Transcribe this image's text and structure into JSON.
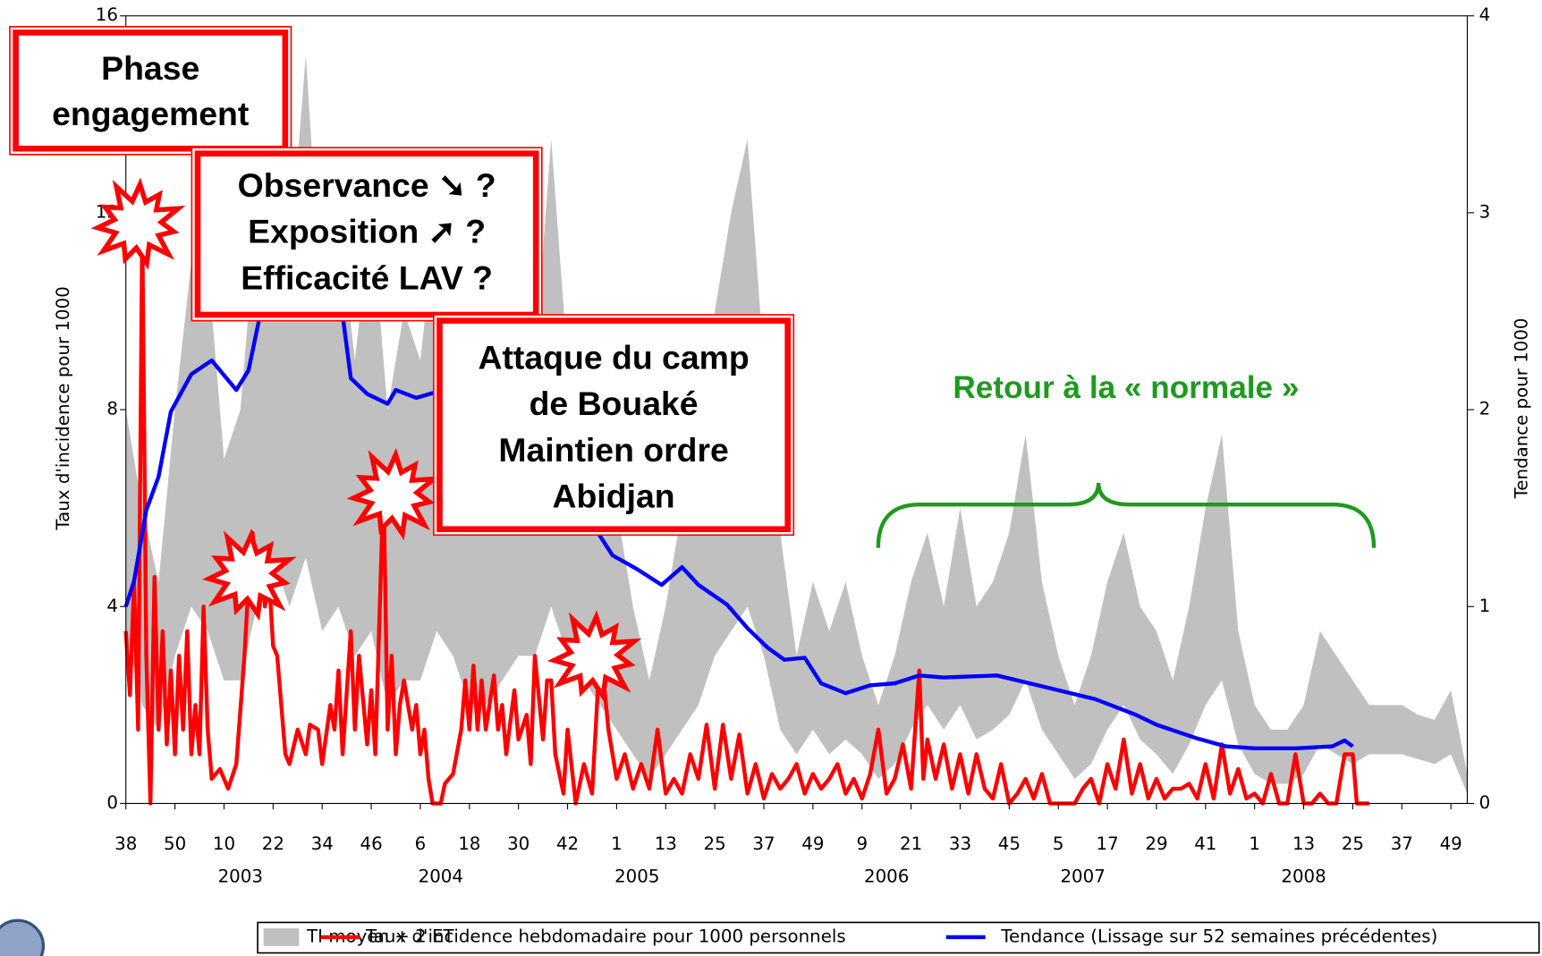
{
  "chart_data": {
    "type": "line",
    "y_label": "Taux d'incidence pour 1000",
    "y2_label": "Tendance pour 1000",
    "xlim": [
      0,
      328
    ],
    "xticks": [
      {
        "value": 0,
        "label": "38"
      },
      {
        "value": 12,
        "label": "50"
      },
      {
        "value": 24,
        "label": "10"
      },
      {
        "value": 36,
        "label": "22"
      },
      {
        "value": 48,
        "label": "34"
      },
      {
        "value": 60,
        "label": "46"
      },
      {
        "value": 72,
        "label": "6"
      },
      {
        "value": 84,
        "label": "18"
      },
      {
        "value": 96,
        "label": "30"
      },
      {
        "value": 108,
        "label": "42"
      },
      {
        "value": 120,
        "label": "1"
      },
      {
        "value": 132,
        "label": "13"
      },
      {
        "value": 144,
        "label": "25"
      },
      {
        "value": 156,
        "label": "37"
      },
      {
        "value": 168,
        "label": "49"
      },
      {
        "value": 180,
        "label": "9"
      },
      {
        "value": 192,
        "label": "21"
      },
      {
        "value": 204,
        "label": "33"
      },
      {
        "value": 216,
        "label": "45"
      },
      {
        "value": 228,
        "label": "5"
      },
      {
        "value": 240,
        "label": "17"
      },
      {
        "value": 252,
        "label": "29"
      },
      {
        "value": 264,
        "label": "41"
      },
      {
        "value": 276,
        "label": "1"
      },
      {
        "value": 288,
        "label": "13"
      },
      {
        "value": 300,
        "label": "25"
      },
      {
        "value": 312,
        "label": "37"
      },
      {
        "value": 324,
        "label": "49"
      }
    ],
    "x_groups": [
      {
        "value": 28,
        "label": "2003"
      },
      {
        "value": 77,
        "label": "2004"
      },
      {
        "value": 125,
        "label": "2005"
      },
      {
        "value": 186,
        "label": "2006"
      },
      {
        "value": 234,
        "label": "2007"
      },
      {
        "value": 288,
        "label": "2008"
      }
    ],
    "ylim": [
      0,
      16
    ],
    "yticks": [
      0,
      4,
      8,
      12,
      16
    ],
    "y2lim": [
      0,
      4
    ],
    "y2ticks": [
      0,
      1,
      2,
      3,
      4
    ],
    "series": [
      {
        "name": "TI moyen + 2 ET",
        "color": "#c0c0c0",
        "style": "band",
        "x": [
          0,
          4,
          8,
          12,
          16,
          20,
          24,
          28,
          32,
          36,
          40,
          44,
          48,
          52,
          56,
          60,
          64,
          68,
          72,
          76,
          80,
          84,
          88,
          92,
          96,
          100,
          104,
          108,
          112,
          116,
          120,
          124,
          128,
          132,
          136,
          140,
          144,
          148,
          152,
          156,
          160,
          164,
          168,
          172,
          176,
          180,
          184,
          188,
          192,
          196,
          200,
          204,
          208,
          212,
          216,
          220,
          224,
          228,
          232,
          236,
          240,
          244,
          248,
          252,
          256,
          260,
          264,
          268,
          272,
          276,
          280,
          284,
          288,
          292,
          296,
          300,
          304,
          308,
          312,
          316,
          320,
          324,
          328
        ],
        "values": [
          8,
          6,
          4.5,
          8,
          11,
          11,
          7,
          8,
          12,
          14,
          11,
          15.2,
          10,
          12,
          9,
          12,
          8,
          10,
          9,
          12,
          9,
          6,
          7,
          8,
          10,
          9,
          13.5,
          9,
          7,
          7,
          6,
          4,
          2.5,
          4,
          6,
          7,
          10,
          12,
          13.5,
          9,
          5.5,
          3,
          4.5,
          3.5,
          4.5,
          3,
          2,
          3,
          4.5,
          5.5,
          4,
          6,
          4,
          4.5,
          5.5,
          7.5,
          4.5,
          3,
          2,
          3,
          4.5,
          5.5,
          4,
          3.5,
          2.5,
          4,
          6,
          7.5,
          3.5,
          2,
          1.5,
          1.5,
          2,
          3.5,
          3,
          2.5,
          2,
          2,
          2,
          1.8,
          1.7,
          2.3,
          0.6
        ],
        "lower": [
          3.5,
          2,
          1.5,
          3,
          4,
          3.5,
          2.5,
          2.5,
          4,
          5,
          4,
          5,
          3.5,
          4,
          3,
          3.5,
          2,
          2.5,
          2.5,
          3.5,
          3,
          2,
          2,
          2.5,
          3,
          3,
          4,
          3,
          2.5,
          2,
          1.5,
          1,
          0.5,
          1,
          1.5,
          2,
          3,
          3.5,
          4,
          3,
          1.5,
          1,
          1.5,
          1,
          1.3,
          1,
          0.5,
          0.8,
          1.5,
          2,
          1.5,
          2,
          1.3,
          1.5,
          1.8,
          2.5,
          1.5,
          1,
          0.5,
          0.8,
          1.5,
          2,
          1.3,
          1,
          0.6,
          1.2,
          2,
          2.5,
          1.2,
          0.6,
          0.4,
          0.4,
          0.6,
          1.2,
          1,
          0.8,
          1,
          1,
          1,
          0.9,
          0.8,
          1,
          0.2
        ]
      },
      {
        "name": "Taux d'incidence hebdomadaire pour 1000 personnels",
        "color": "#ff0000",
        "style": "line",
        "x": [
          0,
          1,
          2,
          3,
          4,
          5,
          6,
          7,
          8,
          9,
          10,
          11,
          12,
          13,
          14,
          15,
          16,
          17,
          18,
          19,
          20,
          21,
          23,
          25,
          27,
          29,
          30,
          31,
          32,
          33,
          34,
          35,
          36,
          37,
          39,
          40,
          42,
          44,
          45,
          47,
          48,
          50,
          51,
          52,
          53,
          55,
          56,
          57,
          59,
          60,
          61,
          63,
          64,
          65,
          66,
          67,
          68,
          70,
          71,
          72,
          73,
          74,
          75,
          77,
          78,
          80,
          82,
          83,
          84,
          85,
          86,
          87,
          88,
          90,
          91,
          92,
          93,
          95,
          96,
          98,
          99,
          100,
          102,
          103,
          104,
          105,
          107,
          108,
          110,
          112,
          114,
          116,
          118,
          120,
          122,
          124,
          126,
          128,
          130,
          132,
          134,
          136,
          138,
          140,
          142,
          144,
          146,
          148,
          150,
          152,
          154,
          156,
          158,
          160,
          162,
          164,
          166,
          168,
          170,
          172,
          174,
          176,
          178,
          180,
          182,
          184,
          186,
          188,
          190,
          192,
          194,
          195,
          196,
          198,
          200,
          202,
          204,
          206,
          208,
          210,
          212,
          214,
          216,
          218,
          220,
          222,
          224,
          226,
          228,
          232,
          234,
          236,
          238,
          240,
          242,
          244,
          246,
          248,
          250,
          252,
          254,
          256,
          258,
          260,
          262,
          264,
          266,
          268,
          270,
          272,
          274,
          276,
          278,
          280,
          282,
          284,
          286,
          288,
          290,
          292,
          294,
          296,
          298,
          300,
          301,
          304
        ],
        "values": [
          3.5,
          2.2,
          4.5,
          1.5,
          11.8,
          3,
          0,
          4.6,
          1.5,
          3.5,
          1.2,
          2.7,
          1,
          3,
          1.5,
          3.5,
          1,
          2,
          1,
          4,
          1.5,
          0.5,
          0.7,
          0.3,
          0.8,
          3,
          4.5,
          5.5,
          4,
          5,
          4,
          4.6,
          3.2,
          3,
          1,
          0.8,
          1.5,
          1,
          1.6,
          1.5,
          0.8,
          2,
          1.5,
          2.7,
          1,
          3.5,
          1.5,
          3,
          1.2,
          2.3,
          1,
          6.5,
          1.5,
          3,
          1,
          2,
          2.5,
          1.5,
          2,
          1,
          1.5,
          0.5,
          0,
          0,
          0.4,
          0.6,
          1.5,
          2.5,
          1.5,
          2.8,
          1.5,
          2.5,
          1.5,
          2.6,
          1.5,
          2,
          1,
          2.3,
          1.3,
          1.8,
          0.8,
          3,
          1.3,
          2.5,
          2.5,
          1,
          0.2,
          1.5,
          0,
          0.8,
          0.2,
          3.2,
          1.5,
          0.5,
          1,
          0.3,
          0.8,
          0.3,
          1.5,
          0.2,
          0.5,
          0.2,
          1,
          0.5,
          1.6,
          0.3,
          1.6,
          0.5,
          1.4,
          0.2,
          0.8,
          0.1,
          0.6,
          0.3,
          0.5,
          0.8,
          0.2,
          0.6,
          0.3,
          0.5,
          0.8,
          0.2,
          0.5,
          0.1,
          0.6,
          1.5,
          0.2,
          0.5,
          1.2,
          0.3,
          2.7,
          0.5,
          1.3,
          0.5,
          1.2,
          0.3,
          1,
          0.2,
          1,
          0.3,
          0.1,
          0.8,
          0,
          0.2,
          0.5,
          0.1,
          0.6,
          0,
          0,
          0,
          0.3,
          0.5,
          0,
          0.8,
          0.3,
          1.3,
          0.2,
          0.8,
          0.1,
          0.5,
          0.1,
          0.3,
          0.3,
          0.4,
          0.1,
          0.8,
          0.1,
          1.2,
          0.2,
          0.7,
          0.1,
          0.2,
          0,
          0.6,
          0,
          0,
          1,
          0,
          0,
          0.2,
          0,
          0,
          1,
          1,
          0,
          0
        ]
      },
      {
        "name": "Tendance (Lissage sur 52 semaines précédentes)",
        "color": "#0000ff",
        "style": "line",
        "axis": "y2",
        "x": [
          0,
          2,
          5,
          8,
          11,
          16,
          21,
          27,
          30,
          34,
          38,
          42,
          48,
          53,
          55,
          59,
          64,
          66,
          71,
          76,
          82,
          90,
          100,
          110,
          119,
          125,
          131,
          136,
          140,
          147,
          152,
          157,
          161,
          166,
          170,
          176,
          182,
          188,
          194,
          200,
          213,
          225,
          237,
          247,
          252,
          262,
          269,
          276,
          286,
          295,
          298,
          300
        ],
        "values": [
          1.0,
          1.13,
          1.49,
          1.66,
          1.99,
          2.18,
          2.25,
          2.1,
          2.2,
          2.6,
          2.9,
          2.95,
          2.8,
          2.48,
          2.16,
          2.08,
          2.03,
          2.1,
          2.06,
          2.09,
          2.1,
          2.0,
          1.8,
          1.55,
          1.26,
          1.19,
          1.11,
          1.2,
          1.11,
          1.01,
          0.89,
          0.79,
          0.73,
          0.74,
          0.61,
          0.56,
          0.6,
          0.61,
          0.65,
          0.64,
          0.65,
          0.59,
          0.53,
          0.45,
          0.4,
          0.33,
          0.29,
          0.28,
          0.28,
          0.29,
          0.32,
          0.29
        ]
      }
    ],
    "annotations": [
      {
        "lines": [
          "Phase",
          "engagement"
        ]
      },
      {
        "lines": [
          "Observance ➘ ?",
          "Exposition ➚ ?",
          "Efficacité LAV ?"
        ]
      },
      {
        "lines": [
          "Attaque du camp",
          "de Bouaké",
          "Maintien ordre",
          "Abidjan"
        ]
      },
      {
        "lines": [
          "Retour à la « normale »"
        ],
        "color": "#1e9a1e"
      }
    ]
  }
}
